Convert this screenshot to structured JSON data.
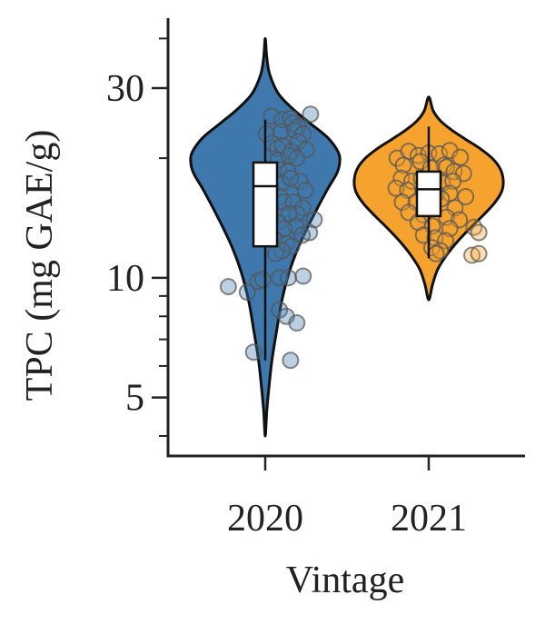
{
  "chart_data": {
    "type": "violin",
    "xlabel": "Vintage",
    "ylabel": "TPC (mg GAE/g)",
    "yscale": "log",
    "ylim": [
      3.6,
      45
    ],
    "major_ticks": [
      5,
      10,
      30
    ],
    "minor_ticks": [
      4,
      6,
      7,
      8,
      9,
      20,
      40
    ],
    "categories": [
      "2020",
      "2021"
    ],
    "colors": {
      "2020": "#3f78ad",
      "2021": "#f5a22f"
    },
    "series": [
      {
        "category": "2020",
        "violin": {
          "min": 4.0,
          "max": 40.0,
          "profile": [
            [
              4.0,
              0.0
            ],
            [
              4.6,
              0.02
            ],
            [
              5.3,
              0.05
            ],
            [
              6.2,
              0.09
            ],
            [
              7.3,
              0.15
            ],
            [
              8.7,
              0.22
            ],
            [
              10.3,
              0.32
            ],
            [
              12.0,
              0.45
            ],
            [
              14.0,
              0.62
            ],
            [
              16.5,
              0.82
            ],
            [
              18.3,
              0.96
            ],
            [
              19.5,
              1.0
            ],
            [
              20.7,
              0.98
            ],
            [
              22.5,
              0.84
            ],
            [
              24.5,
              0.6
            ],
            [
              26.5,
              0.38
            ],
            [
              29.0,
              0.18
            ],
            [
              32.5,
              0.06
            ],
            [
              36.0,
              0.02
            ],
            [
              40.0,
              0.0
            ]
          ]
        },
        "box": {
          "whisker_low": 6.2,
          "q1": 12.0,
          "median": 17.0,
          "q3": 19.5,
          "whisker_high": 25.0
        },
        "points": [
          [
            0.12,
            25.5
          ],
          [
            0.32,
            25.0
          ],
          [
            0.48,
            25.2
          ],
          [
            0.86,
            25.8
          ],
          [
            0.52,
            24.5
          ],
          [
            0.62,
            24.0
          ],
          [
            0.02,
            23.0
          ],
          [
            0.3,
            23.3
          ],
          [
            0.56,
            23.5
          ],
          [
            0.72,
            23.0
          ],
          [
            0.13,
            21.8
          ],
          [
            0.23,
            21.2
          ],
          [
            0.33,
            21.5
          ],
          [
            0.63,
            22.0
          ],
          [
            0.78,
            21.0
          ],
          [
            0.5,
            20.8
          ],
          [
            0.24,
            19.8
          ],
          [
            0.45,
            20.3
          ],
          [
            0.6,
            20.0
          ],
          [
            0.02,
            18.3
          ],
          [
            0.26,
            18.7
          ],
          [
            0.43,
            18.5
          ],
          [
            0.66,
            17.5
          ],
          [
            0.31,
            17.3
          ],
          [
            0.1,
            16.9
          ],
          [
            0.76,
            16.6
          ],
          [
            0.48,
            17.8
          ],
          [
            0.28,
            16.0
          ],
          [
            0.35,
            15.5
          ],
          [
            0.53,
            15.5
          ],
          [
            0.71,
            15.0
          ],
          [
            0.6,
            14.5
          ],
          [
            0.1,
            14.2
          ],
          [
            0.45,
            14.5
          ],
          [
            0.93,
            14.0
          ],
          [
            0.25,
            13.8
          ],
          [
            0.58,
            13.5
          ],
          [
            0.36,
            13.3
          ],
          [
            0.84,
            13.0
          ],
          [
            0.7,
            12.8
          ],
          [
            0.18,
            12.5
          ],
          [
            0.4,
            12.2
          ],
          [
            0.5,
            12.0
          ],
          [
            0.32,
            11.7
          ],
          [
            0.2,
            11.5
          ],
          [
            0.27,
            10.0
          ],
          [
            0.44,
            10.0
          ],
          [
            0.72,
            10.1
          ],
          [
            -0.7,
            9.5
          ],
          [
            -0.14,
            9.8
          ],
          [
            -0.05,
            9.9
          ],
          [
            -0.34,
            9.2
          ],
          [
            0.27,
            8.3
          ],
          [
            0.4,
            8.0
          ],
          [
            0.6,
            7.7
          ],
          [
            -0.22,
            6.5
          ],
          [
            0.48,
            6.2
          ]
        ]
      },
      {
        "category": "2021",
        "violin": {
          "min": 8.8,
          "max": 28.5,
          "profile": [
            [
              8.8,
              0.0
            ],
            [
              9.6,
              0.05
            ],
            [
              10.5,
              0.12
            ],
            [
              11.4,
              0.24
            ],
            [
              12.3,
              0.38
            ],
            [
              13.3,
              0.55
            ],
            [
              14.3,
              0.72
            ],
            [
              15.4,
              0.88
            ],
            [
              16.5,
              0.98
            ],
            [
              17.6,
              1.0
            ],
            [
              18.8,
              0.96
            ],
            [
              20.0,
              0.85
            ],
            [
              21.2,
              0.68
            ],
            [
              22.4,
              0.48
            ],
            [
              23.6,
              0.3
            ],
            [
              24.8,
              0.16
            ],
            [
              26.3,
              0.06
            ],
            [
              28.5,
              0.0
            ]
          ]
        },
        "box": {
          "whisker_low": 11.2,
          "q1": 14.3,
          "median": 16.7,
          "q3": 18.5,
          "whisker_high": 24.0
        },
        "points": [
          [
            -0.6,
            20.0
          ],
          [
            -0.38,
            20.8
          ],
          [
            -0.2,
            20.3
          ],
          [
            0.0,
            20.6
          ],
          [
            0.2,
            20.5
          ],
          [
            0.4,
            20.9
          ],
          [
            0.6,
            20.1
          ],
          [
            0.29,
            19.2
          ],
          [
            -0.48,
            19.2
          ],
          [
            -0.16,
            19.6
          ],
          [
            0.04,
            18.9
          ],
          [
            0.34,
            19.0
          ],
          [
            0.48,
            18.5
          ],
          [
            0.66,
            18.3
          ],
          [
            -0.52,
            17.8
          ],
          [
            -0.32,
            17.5
          ],
          [
            -0.14,
            17.8
          ],
          [
            0.1,
            17.6
          ],
          [
            0.26,
            17.3
          ],
          [
            0.46,
            17.5
          ],
          [
            -0.62,
            16.8
          ],
          [
            -0.4,
            16.6
          ],
          [
            -0.1,
            16.5
          ],
          [
            0.15,
            16.3
          ],
          [
            0.4,
            16.3
          ],
          [
            0.7,
            16.0
          ],
          [
            -0.5,
            15.5
          ],
          [
            -0.24,
            15.5
          ],
          [
            0.02,
            15.2
          ],
          [
            0.24,
            15.8
          ],
          [
            0.5,
            15.0
          ],
          [
            -0.38,
            14.6
          ],
          [
            -0.1,
            14.4
          ],
          [
            0.34,
            14.2
          ],
          [
            0.58,
            14.0
          ],
          [
            -0.2,
            13.8
          ],
          [
            0.07,
            13.5
          ],
          [
            0.4,
            13.3
          ],
          [
            0.86,
            13.4
          ],
          [
            -0.1,
            12.8
          ],
          [
            0.12,
            12.6
          ],
          [
            0.32,
            12.4
          ],
          [
            0.95,
            13.0
          ],
          [
            0.06,
            11.9
          ],
          [
            0.22,
            11.7
          ],
          [
            0.14,
            11.5
          ],
          [
            0.82,
            11.4
          ],
          [
            0.95,
            11.5
          ]
        ]
      }
    ]
  }
}
